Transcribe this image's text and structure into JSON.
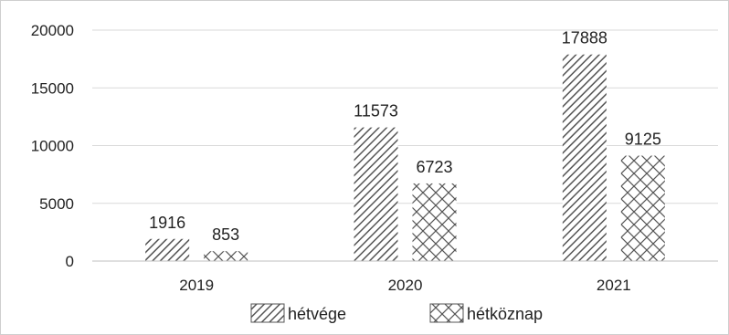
{
  "chart_data": {
    "type": "bar",
    "categories": [
      "2019",
      "2020",
      "2021"
    ],
    "series": [
      {
        "name": "hétvége",
        "values": [
          1916,
          11573,
          17888
        ],
        "pattern": "diagonal-hatch"
      },
      {
        "name": "hétköznap",
        "values": [
          853,
          6723,
          9125
        ],
        "pattern": "cross-hatch"
      }
    ],
    "data_labels": [
      [
        "1916",
        "11573",
        "17888"
      ],
      [
        "853",
        "6723",
        "9125"
      ]
    ],
    "title": "",
    "xlabel": "",
    "ylabel": "",
    "ylim": [
      0,
      20000
    ],
    "yticks": [
      "0",
      "5000",
      "10000",
      "15000",
      "20000"
    ],
    "grid": true,
    "legend": "bottom",
    "colors": {
      "pattern": "#555555",
      "grid": "#d9d9d9",
      "axis": "#bfbfbf",
      "text": "#222222"
    }
  }
}
